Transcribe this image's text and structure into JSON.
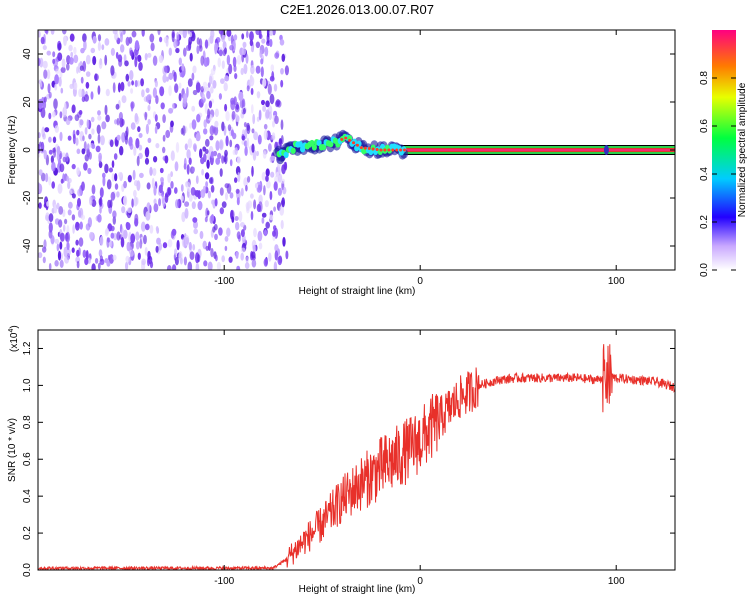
{
  "title": "C2E1.2026.013.00.07.R07",
  "chart_data": [
    {
      "type": "heatmap",
      "xlabel": "Height of straight line (km)",
      "ylabel": "Frequency (Hz)",
      "xlim": [
        -195,
        130
      ],
      "ylim": [
        -50,
        50
      ],
      "xticks": [
        -100,
        0,
        100
      ],
      "yticks": [
        -40,
        -20,
        0,
        20,
        40
      ],
      "noise_region_x": [
        -195,
        -72
      ],
      "signal_track": [
        {
          "x": -72,
          "y": -3
        },
        {
          "x": -65,
          "y": 1
        },
        {
          "x": -55,
          "y": 2
        },
        {
          "x": -45,
          "y": 3
        },
        {
          "x": -38,
          "y": 5
        },
        {
          "x": -30,
          "y": 1
        },
        {
          "x": -20,
          "y": 0
        },
        {
          "x": -10,
          "y": 0
        },
        {
          "x": 0,
          "y": 0
        },
        {
          "x": 130,
          "y": 0
        }
      ],
      "colorbar": {
        "label": "Normalized spectral amplitude",
        "range": [
          0,
          1
        ],
        "ticks": [
          "0.0",
          "0.2",
          "0.4",
          "0.6",
          "0.8"
        ]
      }
    },
    {
      "type": "line",
      "xlabel": "Height of straight line (km)",
      "ylabel": "SNR (10 * v/v)",
      "multiplier": "(x10",
      "multiplier_exp": "4",
      "multiplier_close": ")",
      "xlim": [
        -195,
        130
      ],
      "ylim": [
        0,
        1.3
      ],
      "xticks": [
        -100,
        0,
        100
      ],
      "yticks": [
        "0.0",
        "0.2",
        "0.4",
        "0.6",
        "0.8",
        "1.0",
        "1.2"
      ],
      "color": "#e8302a",
      "series": [
        {
          "x": [
            -195,
            -150,
            -100,
            -75,
            -68,
            -60,
            -50,
            -40,
            -30,
            -20,
            -10,
            0,
            10,
            20,
            30,
            40,
            50,
            60,
            70,
            80,
            90,
            95,
            100,
            110,
            120,
            130
          ],
          "y": [
            0.01,
            0.01,
            0.01,
            0.01,
            0.06,
            0.15,
            0.25,
            0.38,
            0.47,
            0.55,
            0.62,
            0.7,
            0.82,
            0.93,
            1.0,
            1.03,
            1.04,
            1.04,
            1.04,
            1.04,
            1.03,
            1.05,
            1.04,
            1.03,
            1.02,
            0.99
          ]
        }
      ]
    }
  ]
}
